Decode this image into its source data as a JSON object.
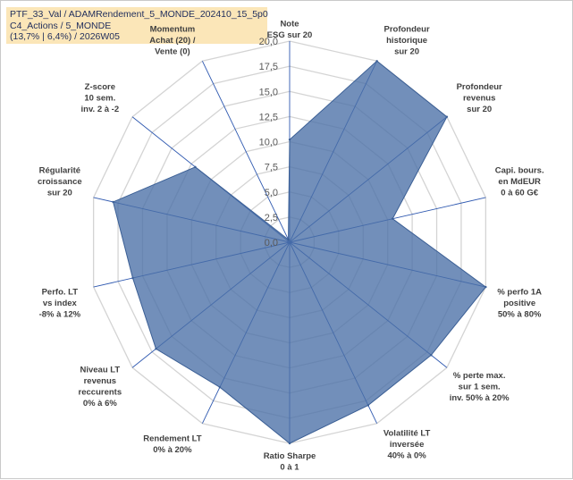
{
  "header": {
    "line1": "PTF_33_Val / ADAMRendement_5_MONDE_202410_15_5p0",
    "line2": "C4_Actions / 5_MONDE",
    "line3": "(13,7% | 6,4%) / 2026W05"
  },
  "chart_data": {
    "type": "radar",
    "title": "PTF_33_Val / ADAMRendement_5_MONDE_202410_15_5p0",
    "rmin": 0,
    "rmax": 20,
    "grid": true,
    "ticks": [
      "0,0",
      "2,5",
      "5,0",
      "7,5",
      "10,0",
      "12,5",
      "15,0",
      "17,5",
      "20,0"
    ],
    "axes": [
      {
        "lines": [
          "Note",
          "ESG sur 20"
        ],
        "highlight": [
          "",
          ""
        ]
      },
      {
        "lines": [
          "Profondeur",
          "historique",
          "sur 20"
        ],
        "highlight": [
          "",
          "",
          ""
        ]
      },
      {
        "lines": [
          "Profondeur",
          "revenus",
          "sur 20"
        ],
        "highlight": [
          "",
          "",
          ""
        ]
      },
      {
        "lines": [
          "Capi. bours.",
          "en MdEUR",
          "0 à 60 G€"
        ],
        "highlight": [
          "",
          "",
          ""
        ]
      },
      {
        "lines": [
          "% perfo 1A",
          "positive",
          "50% à 80%"
        ],
        "highlight": [
          "",
          "",
          ""
        ]
      },
      {
        "lines": [
          "% perte max.",
          "sur 1 sem.",
          "inv. 50% à 20%"
        ],
        "highlight": [
          "",
          "",
          ""
        ]
      },
      {
        "lines": [
          "Volatilité LT",
          "inversée",
          "40% à 0%"
        ],
        "highlight": [
          "",
          "",
          ""
        ]
      },
      {
        "lines": [
          "Ratio Sharpe",
          "0 à 1"
        ],
        "highlight": [
          "",
          ""
        ]
      },
      {
        "lines": [
          "Rendement LT",
          "0% à 20%"
        ],
        "highlight": [
          "",
          ""
        ]
      },
      {
        "lines": [
          "Niveau LT",
          "revenus",
          "reccurents",
          "0% à 6%"
        ],
        "highlight": [
          "",
          "",
          "",
          ""
        ]
      },
      {
        "lines": [
          "Perfo. LT",
          "vs index",
          "-8% à 12%"
        ],
        "highlight": [
          "",
          "",
          ""
        ]
      },
      {
        "lines": [
          "Régularité",
          "croissance",
          "sur 20"
        ],
        "highlight": [
          "",
          "",
          ""
        ]
      },
      {
        "lines": [
          "Z-score",
          "10 sem.",
          "inv. 2 à -2"
        ],
        "highlight": [
          "",
          "",
          ""
        ]
      },
      {
        "lines": [
          "Momentum",
          "Achat (20) /",
          "Vente (0)"
        ],
        "highlight": [
          "#b59b5f",
          "",
          ""
        ]
      }
    ],
    "series": [
      {
        "name": "PTF_33_Val",
        "values": [
          10.2,
          20.0,
          20.0,
          10.5,
          20.0,
          18.0,
          18.0,
          20.0,
          16.0,
          17.0,
          16.0,
          18.0,
          12.0,
          0.3
        ],
        "fill": "#4a70a6",
        "fill_opacity": 0.78,
        "stroke": "#3b5f95"
      }
    ],
    "colors": {
      "grid": "#d4d4d4",
      "spoke": "#2f59b0",
      "tick": "#595959",
      "label": "#404040"
    }
  }
}
